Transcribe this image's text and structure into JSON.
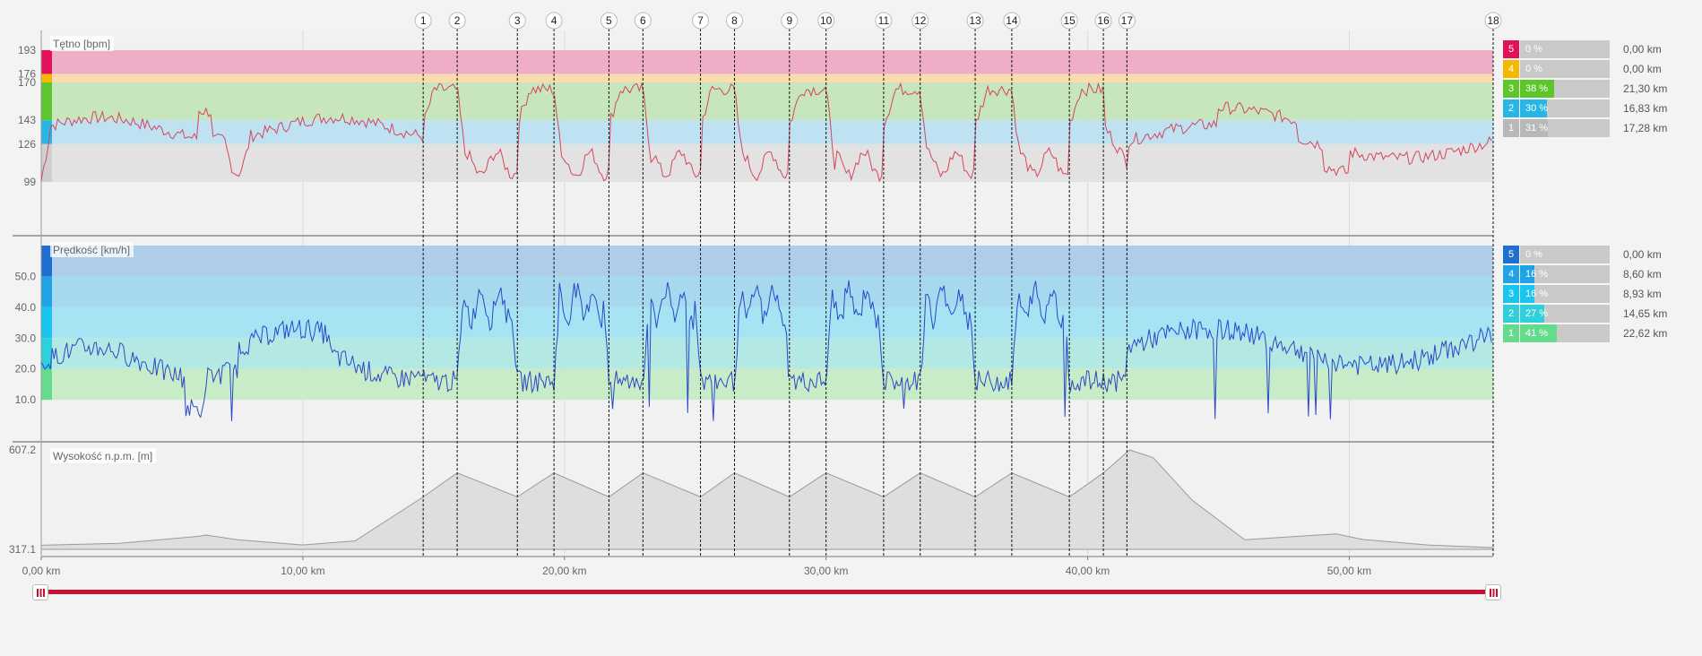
{
  "colors": {
    "hr_line": "#d6455a",
    "speed_line": "#2a48c9",
    "elevation_fill": "#dedede",
    "elevation_stroke": "#9a9a9a",
    "range_bar": "#c8102e"
  },
  "chart_data": [
    {
      "type": "line",
      "title": "Tętno [bpm]",
      "y_ticks": [
        "193",
        "176",
        "170",
        "143",
        "126",
        "99"
      ],
      "ylim": [
        85,
        200
      ],
      "xlim": [
        0,
        55.5
      ],
      "zones": [
        {
          "zone": "5",
          "from": 176,
          "to": 193,
          "color": "#efaec8",
          "marker": "#e3105a"
        },
        {
          "zone": "4",
          "from": 170,
          "to": 176,
          "color": "#f8dcb0",
          "marker": "#f5b800"
        },
        {
          "zone": "3",
          "from": 143,
          "to": 170,
          "color": "#c7e6bd",
          "marker": "#5ec52a"
        },
        {
          "zone": "2",
          "from": 126,
          "to": 143,
          "color": "#bfe2f2",
          "marker": "#27b6e6"
        },
        {
          "zone": "1",
          "from": 99,
          "to": 126,
          "color": "#e2e2e2",
          "marker": "#cfcfcf"
        }
      ]
    },
    {
      "type": "line",
      "title": "Prędkość [km/h]",
      "y_ticks": [
        "50.0",
        "40.0",
        "30.0",
        "20.0",
        "10.0"
      ],
      "ylim": [
        -1,
        60
      ],
      "xlim": [
        0,
        55.5
      ],
      "zones": [
        {
          "zone": "5",
          "from": 50,
          "to": 60,
          "color": "#aecde9",
          "marker": "#1f6fd1"
        },
        {
          "zone": "4",
          "from": 40,
          "to": 50,
          "color": "#a6d9ee",
          "marker": "#1fa2e6"
        },
        {
          "zone": "3",
          "from": 30,
          "to": 40,
          "color": "#a6e3f3",
          "marker": "#19c4ef"
        },
        {
          "zone": "2",
          "from": 20,
          "to": 30,
          "color": "#b4e8e3",
          "marker": "#2fd0d9"
        },
        {
          "zone": "1",
          "from": 10,
          "to": 20,
          "color": "#c8ecc8",
          "marker": "#65dc8c"
        }
      ]
    },
    {
      "type": "area",
      "title": "Wysokość n.p.m. [m]",
      "y_ticks": [
        "607.2",
        "317.1"
      ],
      "ylim": [
        317.1,
        607.2
      ],
      "xlim": [
        0,
        55.5
      ],
      "x_ticks": [
        "0,00 km",
        "10,00 km",
        "20,00 km",
        "30,00 km",
        "40,00 km",
        "50,00 km"
      ]
    }
  ],
  "laps": [
    "1",
    "2",
    "3",
    "4",
    "5",
    "6",
    "7",
    "8",
    "9",
    "10",
    "11",
    "12",
    "13",
    "14",
    "15",
    "16",
    "17",
    "18"
  ],
  "hr_stats": [
    {
      "zone": "5",
      "pct": "0 %",
      "pct_value": 0,
      "dist": "0,00 km",
      "color": "#e3105a"
    },
    {
      "zone": "4",
      "pct": "0 %",
      "pct_value": 0,
      "dist": "0,00 km",
      "color": "#f5b800"
    },
    {
      "zone": "3",
      "pct": "38 %",
      "pct_value": 38,
      "dist": "21,30 km",
      "color": "#5ec52a"
    },
    {
      "zone": "2",
      "pct": "30 %",
      "pct_value": 30,
      "dist": "16,83 km",
      "color": "#27b6e6"
    },
    {
      "zone": "1",
      "pct": "31 %",
      "pct_value": 31,
      "dist": "17,28 km",
      "color": "#b8b8b8"
    }
  ],
  "speed_stats": [
    {
      "zone": "5",
      "pct": "0 %",
      "pct_value": 0,
      "dist": "0,00 km",
      "color": "#1f6fd1"
    },
    {
      "zone": "4",
      "pct": "16 %",
      "pct_value": 16,
      "dist": "8,60 km",
      "color": "#1fa2e6"
    },
    {
      "zone": "3",
      "pct": "16 %",
      "pct_value": 16,
      "dist": "8,93 km",
      "color": "#19c4ef"
    },
    {
      "zone": "2",
      "pct": "27 %",
      "pct_value": 27,
      "dist": "14,65 km",
      "color": "#2fd0d9"
    },
    {
      "zone": "1",
      "pct": "41 %",
      "pct_value": 41,
      "dist": "22,62 km",
      "color": "#65dc8c"
    }
  ]
}
